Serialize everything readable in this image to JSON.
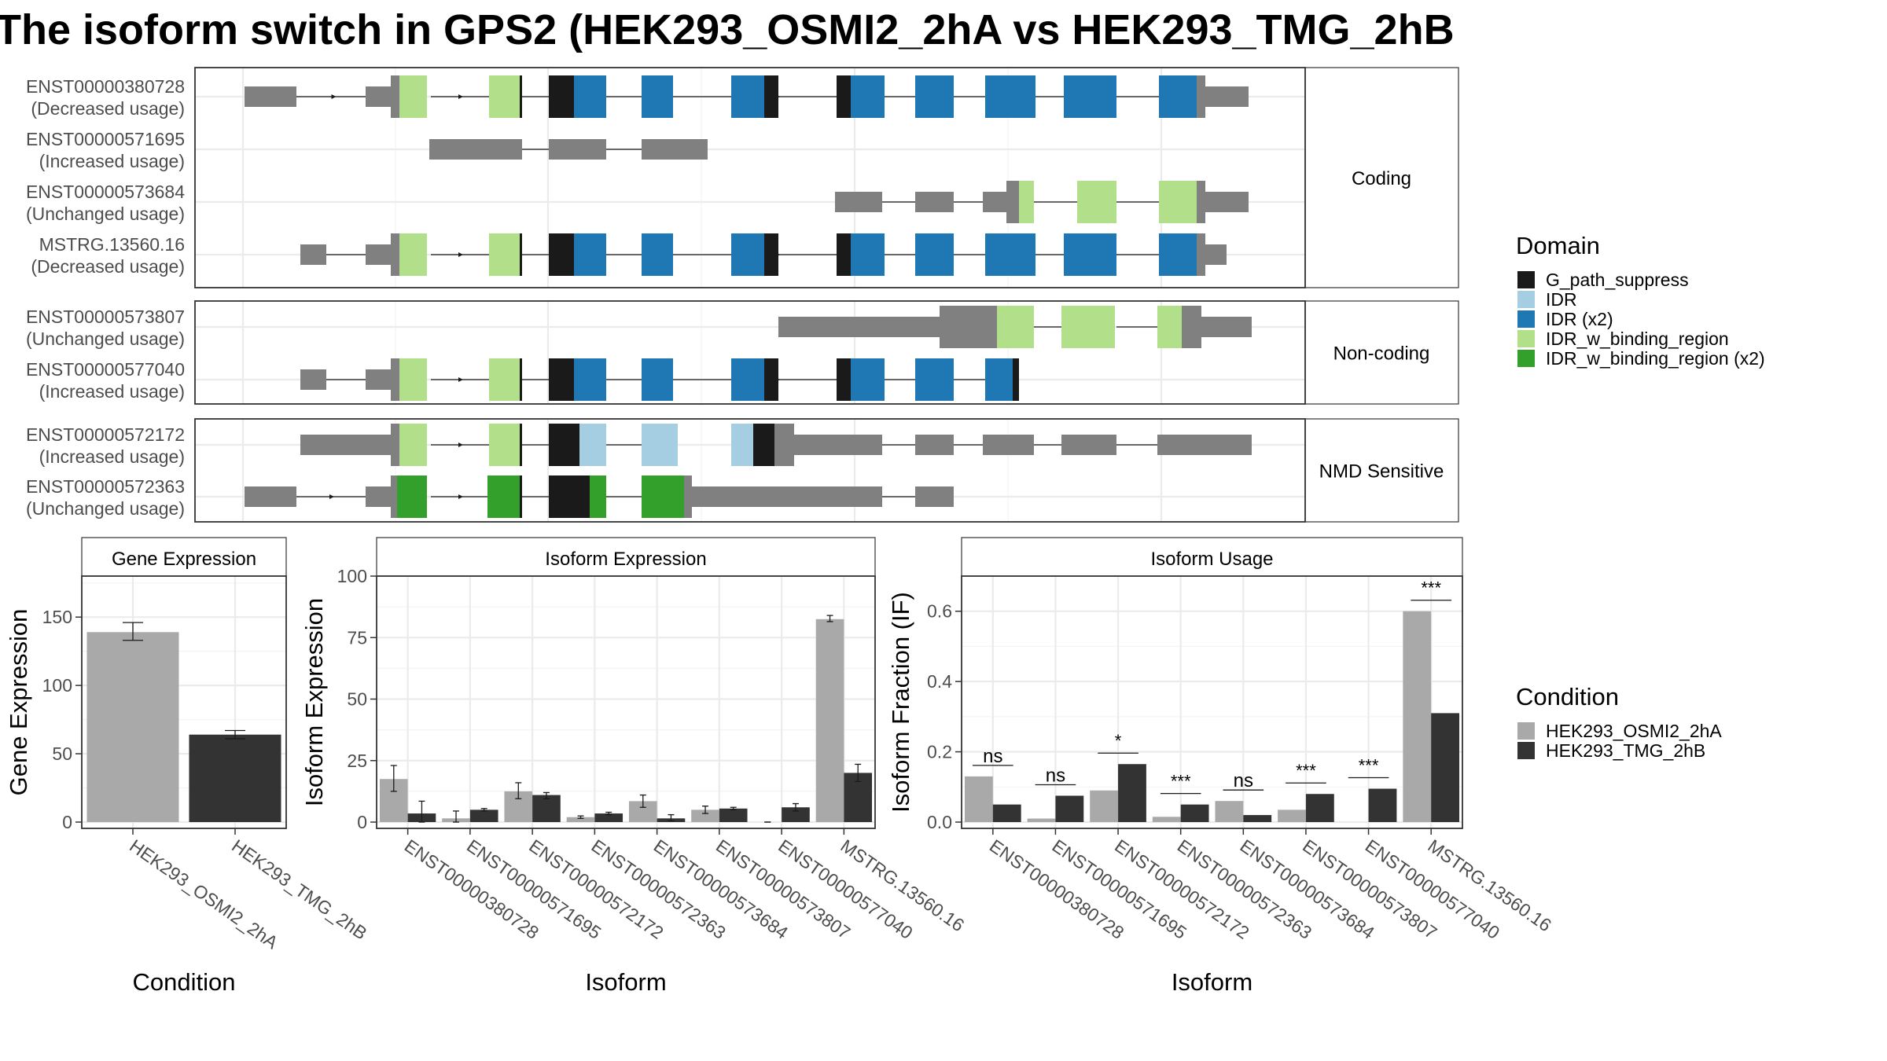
{
  "title": "The isoform switch in GPS2 (HEK293_OSMI2_2hA vs HEK293_TMG_2hB",
  "colors": {
    "G_path_suppress": "#1a1a1a",
    "IDR": "#a6cee3",
    "IDR (x2)": "#1f78b4",
    "IDR_w_binding_region": "#b2df8a",
    "IDR_w_binding_region (x2)": "#33a02c",
    "none": "#808080",
    "cond1": "#a9a9a9",
    "cond2": "#333333"
  },
  "transcript_panels": [
    {
      "label": "Coding",
      "transcripts": [
        {
          "id": "ENST00000380728",
          "usage": "(Decreased usage)"
        },
        {
          "id": "ENST00000571695",
          "usage": "(Increased usage)"
        },
        {
          "id": "ENST00000573684",
          "usage": "(Unchanged usage)"
        },
        {
          "id": "MSTRG.13560.16",
          "usage": "(Decreased usage)"
        }
      ]
    },
    {
      "label": "Non-coding",
      "transcripts": [
        {
          "id": "ENST00000573807",
          "usage": "(Unchanged usage)"
        },
        {
          "id": "ENST00000577040",
          "usage": "(Increased usage)"
        }
      ]
    },
    {
      "label": "NMD Sensitive",
      "transcripts": [
        {
          "id": "ENST00000572172",
          "usage": "(Increased usage)"
        },
        {
          "id": "ENST00000572363",
          "usage": "(Unchanged usage)"
        }
      ]
    }
  ],
  "domain_legend": {
    "title": "Domain",
    "items": [
      "G_path_suppress",
      "IDR",
      "IDR (x2)",
      "IDR_w_binding_region",
      "IDR_w_binding_region (x2)"
    ]
  },
  "condition_legend": {
    "title": "Condition",
    "items": [
      "HEK293_OSMI2_2hA",
      "HEK293_TMG_2hB"
    ]
  },
  "chart_data": [
    {
      "type": "bar",
      "title": "Gene Expression",
      "xlabel": "Condition",
      "ylabel": "Gene Expression",
      "ylim": [
        0,
        180
      ],
      "yticks": [
        0,
        50,
        100,
        150
      ],
      "categories": [
        "HEK293_OSMI2_2hA",
        "HEK293_TMG_2hB"
      ],
      "values": [
        139,
        64
      ],
      "errors": [
        [
          133,
          146
        ],
        [
          61,
          67
        ]
      ]
    },
    {
      "type": "bar",
      "title": "Isoform Expression",
      "xlabel": "Isoform",
      "ylabel": "Isoform Expression",
      "ylim": [
        0,
        100
      ],
      "yticks": [
        0,
        25,
        50,
        75,
        100
      ],
      "categories": [
        "ENST00000380728",
        "ENST00000571695",
        "ENST00000572172",
        "ENST00000572363",
        "ENST00000573684",
        "ENST00000573807",
        "ENST00000577040",
        "MSTRG.13560.16"
      ],
      "series": [
        {
          "name": "HEK293_OSMI2_2hA",
          "values": [
            17.5,
            1.5,
            12.5,
            2,
            8.5,
            5,
            0,
            82.5
          ],
          "errors": [
            [
              12.5,
              23
            ],
            [
              0,
              4.5
            ],
            [
              9.5,
              16
            ],
            [
              1.5,
              2.5
            ],
            [
              6,
              11
            ],
            [
              3.5,
              6.5
            ],
            [
              0,
              0
            ],
            [
              81.5,
              84
            ]
          ]
        },
        {
          "name": "HEK293_TMG_2hB",
          "values": [
            3.5,
            5,
            11,
            3.5,
            1.5,
            5.5,
            6,
            20
          ],
          "errors": [
            [
              0,
              8.5
            ],
            [
              4.5,
              5.5
            ],
            [
              9.5,
              12
            ],
            [
              3,
              4
            ],
            [
              0.5,
              3
            ],
            [
              5,
              6
            ],
            [
              4.5,
              7.5
            ],
            [
              16.5,
              23.5
            ]
          ]
        }
      ]
    },
    {
      "type": "bar",
      "title": "Isoform Usage",
      "xlabel": "Isoform",
      "ylabel": "Isoform Fraction (IF)",
      "ylim": [
        0,
        0.7
      ],
      "yticks": [
        "0.0",
        "0.2",
        "0.4",
        "0.6"
      ],
      "categories": [
        "ENST00000380728",
        "ENST00000571695",
        "ENST00000572172",
        "ENST00000572363",
        "ENST00000573684",
        "ENST00000573807",
        "ENST00000577040",
        "MSTRG.13560.16"
      ],
      "series": [
        {
          "name": "HEK293_OSMI2_2hA",
          "values": [
            0.13,
            0.01,
            0.09,
            0.015,
            0.06,
            0.035,
            0,
            0.6
          ]
        },
        {
          "name": "HEK293_TMG_2hB",
          "values": [
            0.05,
            0.075,
            0.165,
            0.05,
            0.02,
            0.08,
            0.095,
            0.31
          ]
        }
      ],
      "significance": [
        "ns",
        "ns",
        "*",
        "***",
        "ns",
        "***",
        "***",
        "***"
      ]
    }
  ]
}
